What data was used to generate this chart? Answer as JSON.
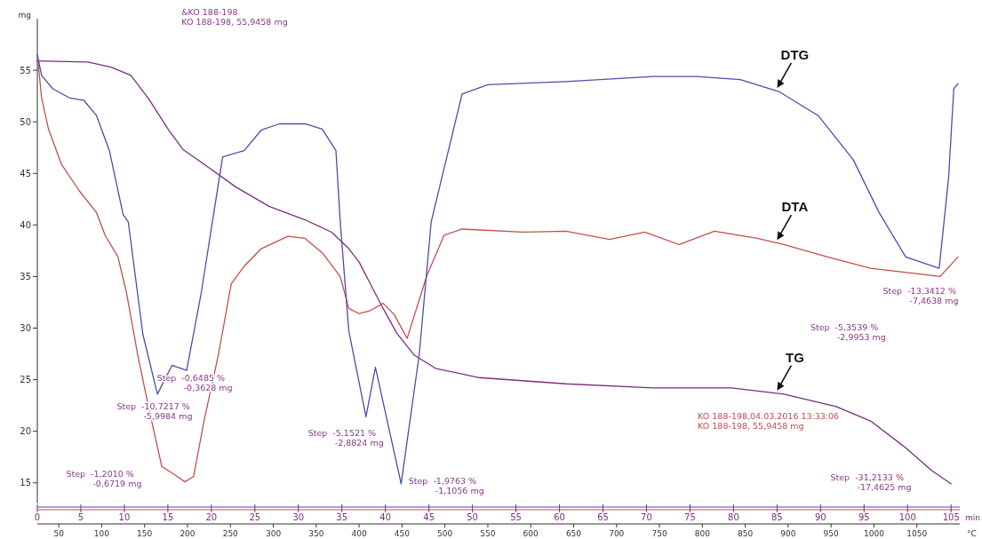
{
  "chart_data": {
    "type": "line",
    "ylabel": "mg",
    "xlabel": "°C",
    "x2label": "min",
    "xlim": [
      25,
      1100
    ],
    "xticks": [
      50,
      100,
      150,
      200,
      250,
      300,
      350,
      400,
      450,
      500,
      550,
      600,
      650,
      700,
      750,
      800,
      850,
      900,
      950,
      1000,
      1050
    ],
    "x2lim": [
      0,
      106
    ],
    "x2ticks": [
      0,
      5,
      10,
      15,
      20,
      25,
      30,
      35,
      40,
      45,
      50,
      55,
      60,
      65,
      70,
      75,
      80,
      85,
      90,
      95,
      100,
      105
    ],
    "ylim": [
      13,
      60
    ],
    "yticks": [
      15,
      20,
      25,
      30,
      35,
      40,
      45,
      50,
      55
    ],
    "grid": false,
    "legend": false,
    "marker": "none",
    "line_style": "solid",
    "series": [
      {
        "name": "TG",
        "color": "#7b2d80",
        "x": [
          25,
          84,
          111,
          134,
          155,
          178,
          195,
          226,
          256,
          295,
          337,
          368,
          388,
          400,
          413,
          428,
          444,
          464,
          489,
          540,
          641,
          743,
          834,
          895,
          956,
          996,
          1037,
          1067,
          1090
        ],
        "values": [
          55.9,
          55.8,
          55.3,
          54.5,
          52.2,
          49.2,
          47.3,
          45.5,
          43.7,
          41.8,
          40.5,
          39.3,
          37.7,
          36.4,
          34.3,
          31.9,
          29.5,
          27.4,
          26.1,
          25.2,
          24.6,
          24.2,
          24.2,
          23.6,
          22.4,
          21.0,
          18.4,
          16.2,
          14.9
        ]
      },
      {
        "name": "DTA",
        "color": "#c0504d",
        "x": [
          25,
          26,
          30,
          38,
          53,
          74,
          94,
          104,
          119,
          129,
          142,
          155,
          170,
          185,
          197,
          207,
          220,
          236,
          251,
          266,
          286,
          317,
          337,
          357,
          378,
          388,
          400,
          413,
          428,
          441,
          456,
          479,
          499,
          520,
          591,
          641,
          692,
          733,
          773,
          814,
          864,
          895,
          946,
          996,
          1047,
          1077,
          1098
        ],
        "values": [
          56.0,
          55.7,
          52.3,
          49.3,
          45.9,
          43.3,
          41.2,
          39.0,
          36.9,
          33.4,
          27.4,
          22.2,
          16.6,
          15.8,
          15.1,
          15.6,
          21.3,
          27.4,
          34.3,
          36.0,
          37.7,
          38.9,
          38.7,
          37.3,
          35.0,
          31.9,
          31.4,
          31.7,
          32.4,
          31.3,
          29.0,
          35.1,
          39.0,
          39.6,
          39.3,
          39.4,
          38.6,
          39.3,
          38.1,
          39.4,
          38.7,
          38.1,
          36.9,
          35.8,
          35.3,
          35.0,
          36.9
        ]
      },
      {
        "name": "DTG",
        "color": "#4b4fa6",
        "x": [
          25,
          30,
          43,
          63,
          79,
          94,
          109,
          125,
          131,
          148,
          165,
          182,
          199,
          216,
          229,
          241,
          266,
          286,
          307,
          337,
          357,
          373,
          378,
          388,
          408,
          419,
          449,
          470,
          484,
          520,
          550,
          641,
          743,
          793,
          844,
          890,
          935,
          976,
          1006,
          1037,
          1076,
          1087,
          1093,
          1098
        ],
        "values": [
          56.5,
          54.5,
          53.2,
          52.3,
          52.1,
          50.6,
          47.2,
          41.0,
          40.3,
          29.4,
          23.6,
          26.4,
          25.9,
          33.4,
          40.3,
          46.6,
          47.2,
          49.2,
          49.8,
          49.8,
          49.3,
          47.2,
          40.3,
          29.7,
          21.4,
          26.2,
          14.9,
          27.4,
          40.3,
          52.7,
          53.6,
          53.9,
          54.4,
          54.4,
          54.1,
          52.9,
          50.6,
          46.3,
          41.2,
          36.9,
          35.8,
          44.6,
          53.2,
          53.7
        ]
      }
    ],
    "annotations": [
      "&KO 188-198",
      "KO 188-198, 55,9458 mg",
      "KO 188-198,04.03.2016 13:33:06",
      "KO 188-198, 55,9458 mg",
      "Step  -1,2010 %\n-0,6719 mg",
      "Step  -10,7217 %\n-5,9984 mg",
      "Step  -0,6485 %\n-0,3628 mg",
      "Step  -5,1521 %\n-2,8824 mg",
      "Step  -1,9763 %\n-1,1056 mg",
      "Step  -5,3539 %\n-2,9953 mg",
      "Step  -13,3412 %\n-7,4638 mg",
      "Step  -31,2133 %\n-17,4625 mg"
    ]
  }
}
